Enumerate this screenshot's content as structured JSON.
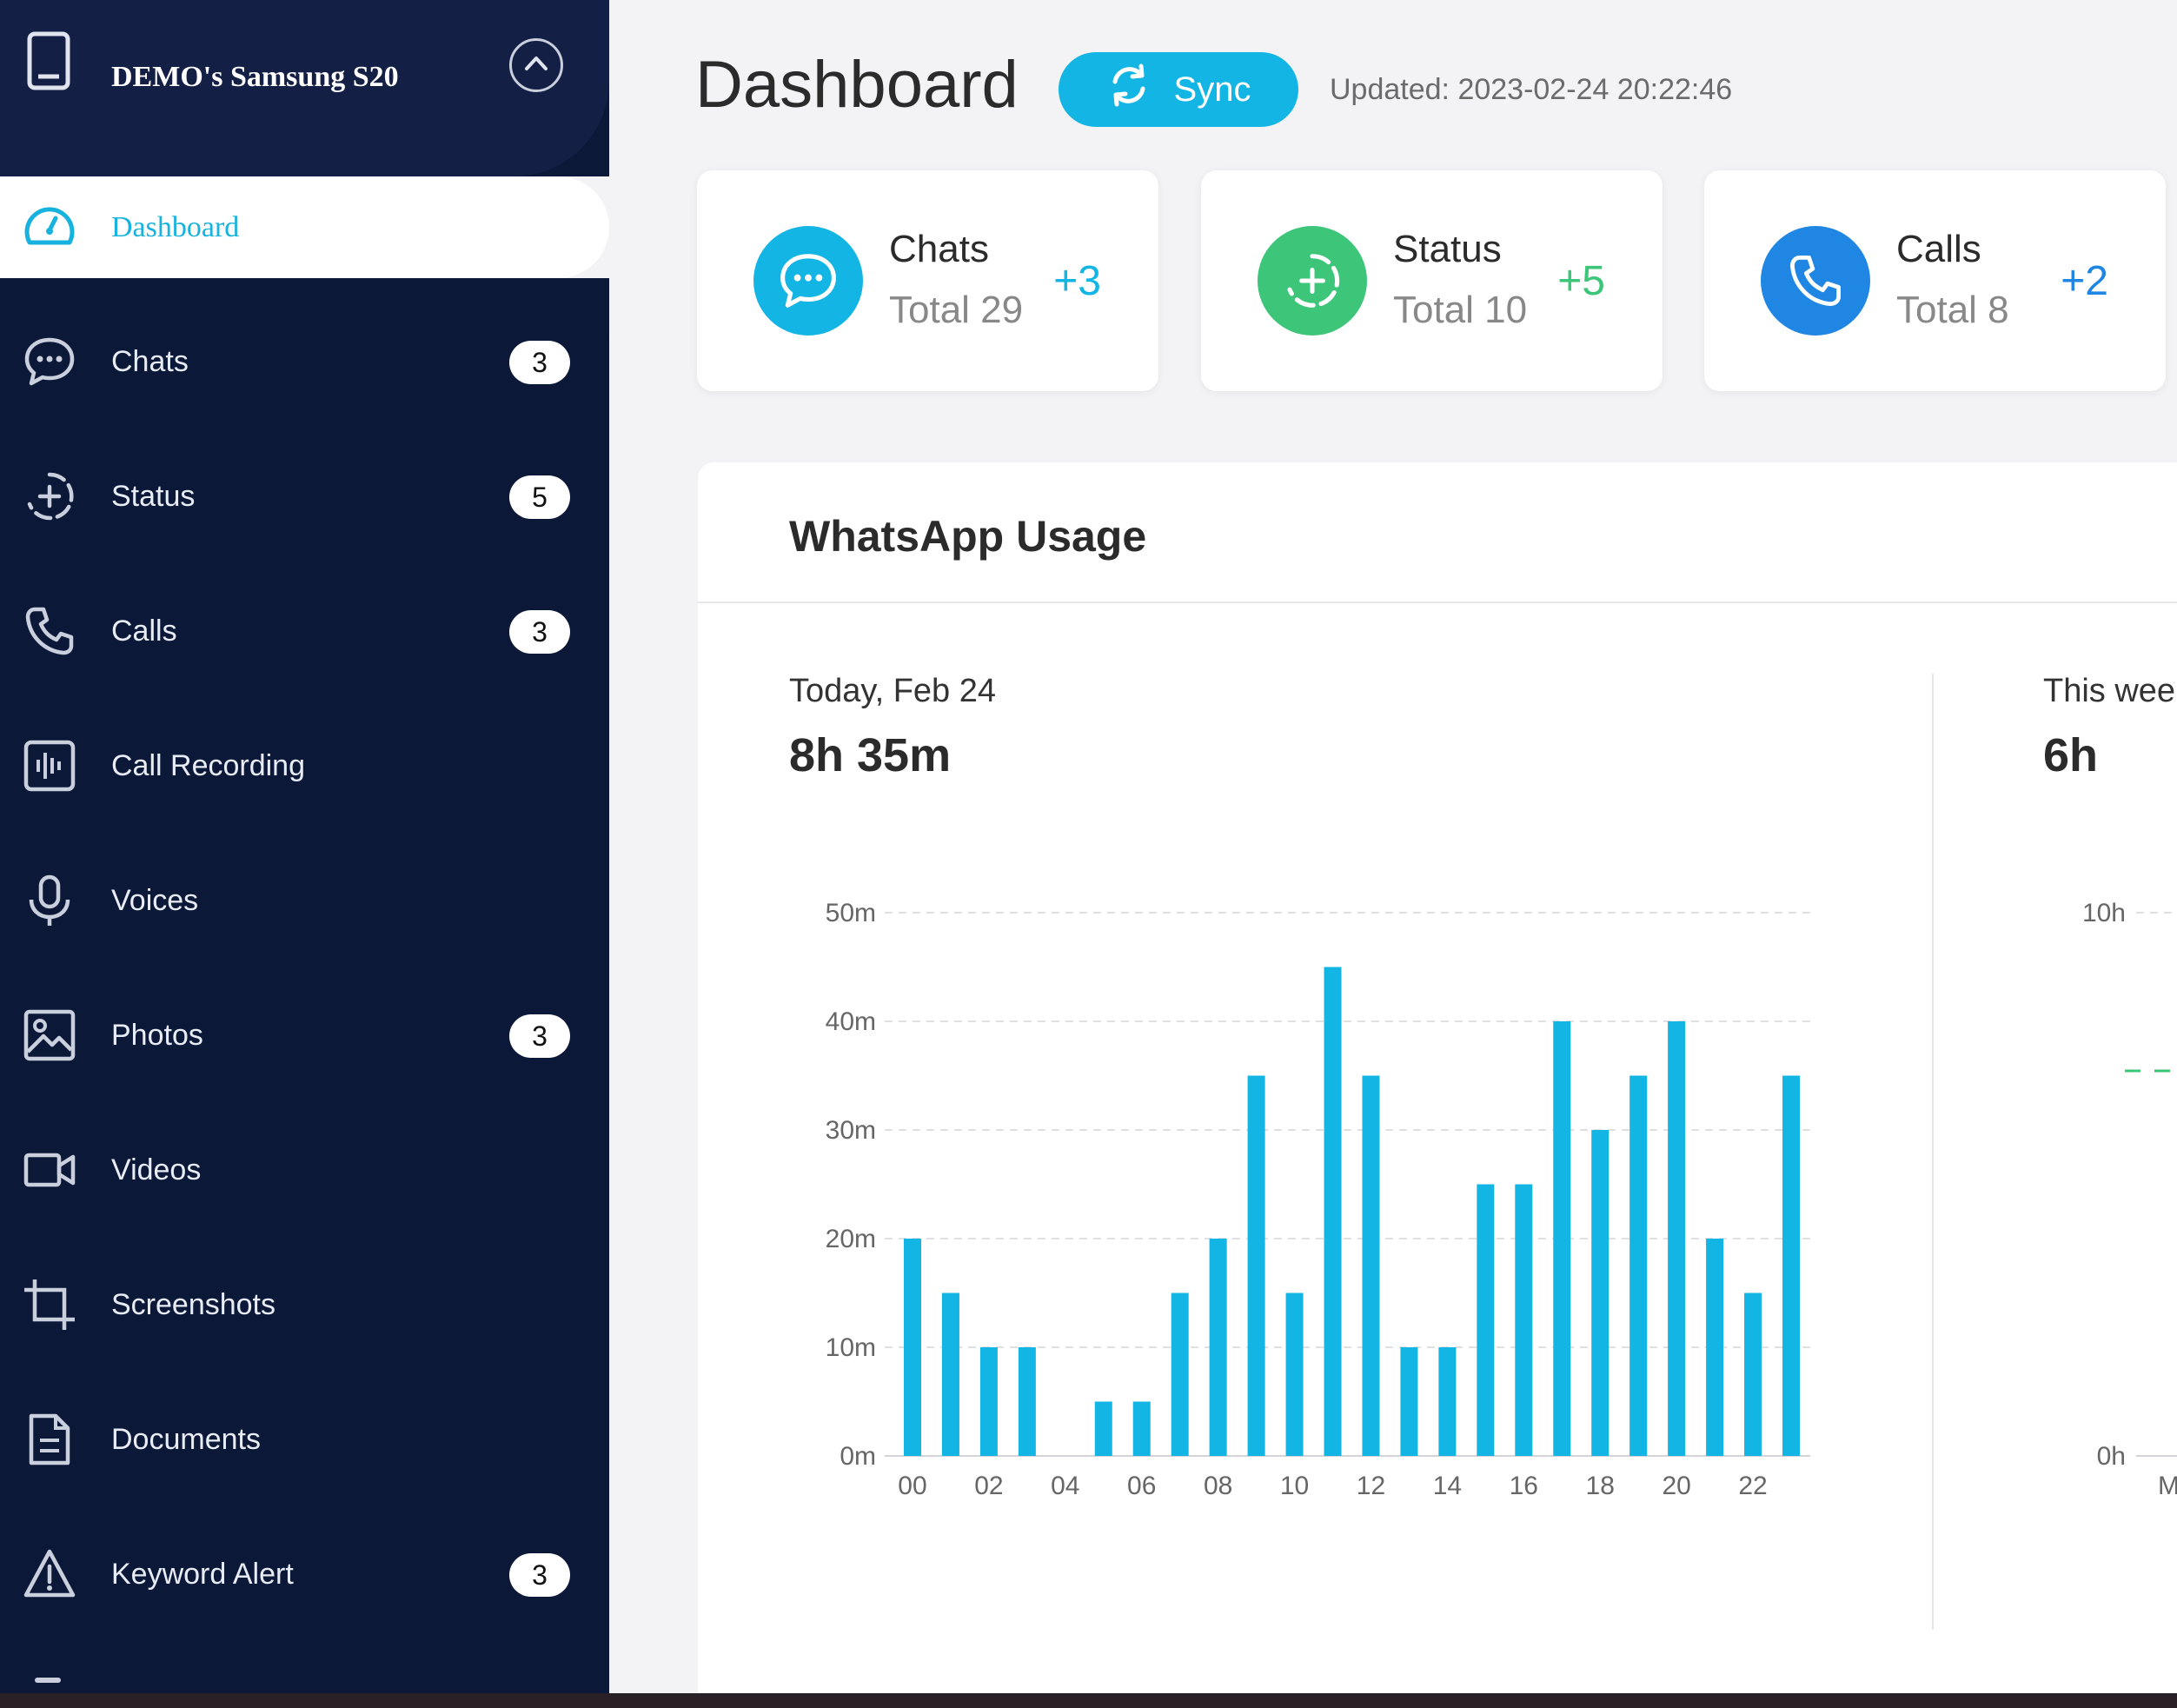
{
  "device": {
    "name": "DEMO's Samsung S20"
  },
  "sidebar": {
    "active": {
      "label": "Dashboard",
      "icon": "dashboard-gauge-icon"
    },
    "items": [
      {
        "key": "chats",
        "label": "Chats",
        "badge": "3",
        "icon": "chat-bubble-icon"
      },
      {
        "key": "status",
        "label": "Status",
        "badge": "5",
        "icon": "status-ring-icon"
      },
      {
        "key": "calls",
        "label": "Calls",
        "badge": "3",
        "icon": "phone-icon"
      },
      {
        "key": "call-recording",
        "label": "Call Recording",
        "badge": "",
        "icon": "waveform-icon"
      },
      {
        "key": "voices",
        "label": "Voices",
        "badge": "",
        "icon": "microphone-icon"
      },
      {
        "key": "photos",
        "label": "Photos",
        "badge": "3",
        "icon": "image-icon"
      },
      {
        "key": "videos",
        "label": "Videos",
        "badge": "",
        "icon": "video-camera-icon"
      },
      {
        "key": "screenshots",
        "label": "Screenshots",
        "badge": "",
        "icon": "crop-icon"
      },
      {
        "key": "documents",
        "label": "Documents",
        "badge": "",
        "icon": "document-icon"
      },
      {
        "key": "keyword-alert",
        "label": "Keyword Alert",
        "badge": "3",
        "icon": "warning-icon"
      }
    ]
  },
  "header": {
    "title": "Dashboard",
    "sync_label": "Sync",
    "updated": "Updated: 2023-02-24 20:22:46"
  },
  "cards": [
    {
      "title": "Chats",
      "total": "Total 29",
      "delta": "+3",
      "color": "#12b5e3",
      "delta_color": "#12b5e3",
      "icon": "chat-bubble-icon"
    },
    {
      "title": "Status",
      "total": "Total 10",
      "delta": "+5",
      "color": "#3dc67a",
      "delta_color": "#3dc67a",
      "icon": "status-ring-icon"
    },
    {
      "title": "Calls",
      "total": "Total 8",
      "delta": "+2",
      "color": "#1f86e3",
      "delta_color": "#1f86e3",
      "icon": "phone-icon"
    }
  ],
  "usage": {
    "title": "WhatsApp Usage",
    "today_label": "Today, Feb 24",
    "today_value": "8h 35m",
    "week_label": "This wee",
    "week_value": "6h",
    "week_y_ticks": [
      "10h",
      "0h"
    ],
    "week_x_tick": "M"
  },
  "chart_data": {
    "type": "bar",
    "categories": [
      "00",
      "01",
      "02",
      "03",
      "04",
      "05",
      "06",
      "07",
      "08",
      "09",
      "10",
      "11",
      "12",
      "13",
      "14",
      "15",
      "16",
      "17",
      "18",
      "19",
      "20",
      "21",
      "22",
      "23"
    ],
    "x_tick_labels": [
      "00",
      "02",
      "04",
      "06",
      "08",
      "10",
      "12",
      "14",
      "16",
      "18",
      "20",
      "22"
    ],
    "values": [
      20,
      15,
      10,
      10,
      0,
      5,
      5,
      15,
      20,
      35,
      15,
      45,
      35,
      10,
      10,
      25,
      25,
      40,
      30,
      35,
      40,
      20,
      15,
      35
    ],
    "unit": "minutes",
    "y_ticks": [
      "0m",
      "10m",
      "20m",
      "30m",
      "40m",
      "50m"
    ],
    "ylim": [
      0,
      50
    ],
    "grid": true,
    "bar_color": "#12b5e3"
  },
  "colors": {
    "sidebar_bg": "#0c1838",
    "accent": "#12b5e3",
    "page_bg": "#f3f3f5"
  }
}
